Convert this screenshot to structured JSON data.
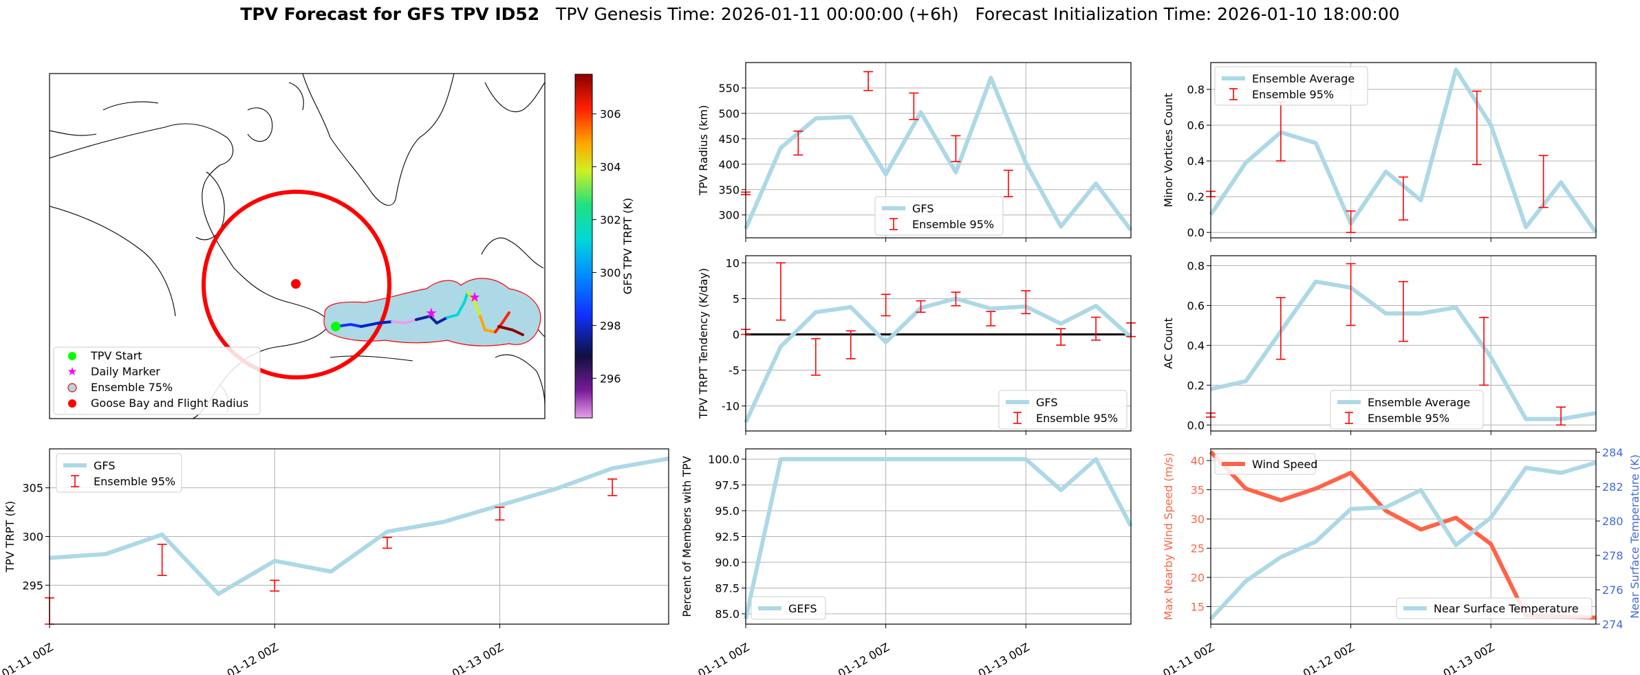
{
  "title": {
    "bold": "TPV Forecast for GFS TPV ID52",
    "genesis": "TPV Genesis Time: 2026-01-11 00:00:00 (+6h)",
    "init": "Forecast Initialization Time: 2026-01-10 18:00:00"
  },
  "colors": {
    "gfs_line": "#add8e6",
    "error_bar": "#ff0000",
    "wind_line": "#ff6347",
    "temp_axis": "#4169e1",
    "ring": "#ff0000",
    "start": "#00ff00",
    "daily": "#ff00ff"
  },
  "time_ticks": [
    "01-11 00Z",
    "01-12 00Z",
    "01-13 00Z"
  ],
  "map": {
    "colorbar_label": "GFS TPV TRPT (K)",
    "colorbar_ticks": [
      296,
      298,
      300,
      302,
      304,
      306
    ],
    "colorbar_range": [
      294.5,
      307.5
    ],
    "legend": [
      "TPV Start",
      "Daily Marker",
      "Ensemble 75%",
      "Goose Bay and Flight Radius"
    ]
  },
  "chart_data": [
    {
      "id": "trpt",
      "type": "line",
      "xlim": [
        0,
        11
      ],
      "ylim": [
        291,
        309
      ],
      "ylabel": "TPV TRPT (K)",
      "yticks": [
        295,
        300,
        305
      ],
      "x": [
        0,
        1,
        2,
        3,
        4,
        5,
        6,
        7,
        8,
        9,
        10,
        11
      ],
      "series": [
        {
          "name": "GFS",
          "values": [
            297.8,
            298.2,
            300.2,
            294.1,
            297.5,
            296.4,
            300.5,
            301.5,
            303.2,
            304.9,
            307.0,
            308.0
          ]
        }
      ],
      "errorbars": [
        {
          "x": 0,
          "low": 291,
          "high": 293.7
        },
        {
          "x": 2,
          "low": 296.0,
          "high": 299.2
        },
        {
          "x": 4,
          "low": 294.4,
          "high": 295.5
        },
        {
          "x": 6,
          "low": 298.8,
          "high": 299.9
        },
        {
          "x": 8,
          "low": 301.7,
          "high": 303.0
        },
        {
          "x": 10,
          "low": 304.2,
          "high": 305.9
        }
      ],
      "legend": [
        "GFS",
        "Ensemble 95%"
      ]
    },
    {
      "id": "radius",
      "type": "line",
      "xlim": [
        0,
        11
      ],
      "ylim": [
        255,
        600
      ],
      "ylabel": "TPV Radius (km)",
      "yticks": [
        300,
        350,
        400,
        450,
        500,
        550
      ],
      "x": [
        0,
        1,
        2,
        3,
        4,
        5,
        6,
        7,
        8,
        9,
        10,
        11
      ],
      "series": [
        {
          "name": "GFS",
          "values": [
            273,
            432,
            490,
            493,
            380,
            502,
            384,
            570,
            402,
            277,
            362,
            270
          ]
        }
      ],
      "errorbars": [
        {
          "x": 0,
          "low": 340,
          "high": 345
        },
        {
          "x": 1.5,
          "low": 418,
          "high": 465
        },
        {
          "x": 3.5,
          "low": 545,
          "high": 582
        },
        {
          "x": 4.8,
          "low": 488,
          "high": 540
        },
        {
          "x": 6,
          "low": 405,
          "high": 456
        },
        {
          "x": 7.5,
          "low": 336,
          "high": 388
        }
      ],
      "legend": [
        "GFS",
        "Ensemble 95%"
      ]
    },
    {
      "id": "tendency",
      "type": "line",
      "xlim": [
        0,
        11
      ],
      "ylim": [
        -13.5,
        11
      ],
      "ylabel": "TPV TRPT Tendency (K/day)",
      "yticks": [
        -10,
        -5,
        0,
        5,
        10
      ],
      "zero_line": true,
      "x": [
        0,
        1,
        2,
        3,
        4,
        5,
        6,
        7,
        8,
        9,
        10,
        11
      ],
      "series": [
        {
          "name": "GFS",
          "values": [
            -12.3,
            -1.7,
            3.1,
            3.8,
            -1.1,
            3.7,
            5.0,
            3.6,
            3.9,
            1.5,
            4.0,
            -0.4
          ]
        }
      ],
      "errorbars": [
        {
          "x": 0,
          "low": 0,
          "high": 0.7
        },
        {
          "x": 1,
          "low": 2.0,
          "high": 10.0
        },
        {
          "x": 2,
          "low": -5.7,
          "high": -0.6
        },
        {
          "x": 3,
          "low": -3.4,
          "high": 0.5
        },
        {
          "x": 4,
          "low": 2.6,
          "high": 5.6
        },
        {
          "x": 5,
          "low": 3.1,
          "high": 4.7
        },
        {
          "x": 6,
          "low": 4.0,
          "high": 5.9
        },
        {
          "x": 7,
          "low": 1.2,
          "high": 3.2
        },
        {
          "x": 8,
          "low": 2.9,
          "high": 6.1
        },
        {
          "x": 9,
          "low": -1.5,
          "high": 0.8
        },
        {
          "x": 10,
          "low": -0.8,
          "high": 2.4
        },
        {
          "x": 11,
          "low": -0.3,
          "high": 1.6
        }
      ],
      "legend": [
        "GFS",
        "Ensemble 95%"
      ]
    },
    {
      "id": "members",
      "type": "line",
      "xlim": [
        0,
        11
      ],
      "ylim": [
        84,
        101
      ],
      "ylabel": "Percent of Members with TPV",
      "yticks": [
        85.0,
        87.5,
        90.0,
        92.5,
        95.0,
        97.5,
        100.0
      ],
      "x": [
        0,
        1,
        2,
        3,
        4,
        5,
        6,
        7,
        8,
        9,
        10,
        11
      ],
      "series": [
        {
          "name": "GEFS",
          "values": [
            84.5,
            100,
            100,
            100,
            100,
            100,
            100,
            100,
            100,
            97,
            100,
            93.5
          ]
        }
      ],
      "legend": [
        "GEFS"
      ]
    },
    {
      "id": "minor",
      "type": "line",
      "xlim": [
        0,
        11
      ],
      "ylim": [
        -0.03,
        0.95
      ],
      "ylabel": "Minor Vortices Count",
      "yticks": [
        0.0,
        0.2,
        0.4,
        0.6,
        0.8
      ],
      "x": [
        0,
        1,
        2,
        3,
        4,
        5,
        6,
        7,
        8,
        9,
        10,
        11
      ],
      "series": [
        {
          "name": "Ensemble Average",
          "values": [
            0.1,
            0.39,
            0.56,
            0.5,
            0.05,
            0.34,
            0.18,
            0.91,
            0.6,
            0.03,
            0.28,
            0.0
          ]
        }
      ],
      "errorbars": [
        {
          "x": 0,
          "low": 0.2,
          "high": 0.23
        },
        {
          "x": 2,
          "low": 0.4,
          "high": 0.73
        },
        {
          "x": 4,
          "low": 0.0,
          "high": 0.12
        },
        {
          "x": 5.5,
          "low": 0.07,
          "high": 0.31
        },
        {
          "x": 7.6,
          "low": 0.38,
          "high": 0.79
        },
        {
          "x": 9.5,
          "low": 0.14,
          "high": 0.43
        }
      ],
      "legend": [
        "Ensemble Average",
        "Ensemble 95%"
      ]
    },
    {
      "id": "ac",
      "type": "line",
      "xlim": [
        0,
        11
      ],
      "ylim": [
        -0.03,
        0.85
      ],
      "ylabel": "AC Count",
      "yticks": [
        0.0,
        0.2,
        0.4,
        0.6,
        0.8
      ],
      "x": [
        0,
        1,
        2,
        3,
        4,
        5,
        6,
        7,
        8,
        9,
        10,
        11
      ],
      "series": [
        {
          "name": "Ensemble Average",
          "values": [
            0.18,
            0.22,
            0.47,
            0.72,
            0.69,
            0.56,
            0.56,
            0.59,
            0.34,
            0.03,
            0.03,
            0.06
          ]
        }
      ],
      "errorbars": [
        {
          "x": 0,
          "low": 0.04,
          "high": 0.06
        },
        {
          "x": 2,
          "low": 0.33,
          "high": 0.64
        },
        {
          "x": 4,
          "low": 0.5,
          "high": 0.81
        },
        {
          "x": 5.5,
          "low": 0.42,
          "high": 0.72
        },
        {
          "x": 7.8,
          "low": 0.2,
          "high": 0.54
        },
        {
          "x": 10,
          "low": 0.0,
          "high": 0.09
        }
      ],
      "legend": [
        "Ensemble Average",
        "Ensemble 95%"
      ]
    },
    {
      "id": "wind",
      "type": "line",
      "xlim": [
        0,
        11
      ],
      "ylim": [
        12,
        42
      ],
      "ylabel": "Max Nearby Wind Speed (m/s)",
      "yticks": [
        15,
        20,
        25,
        30,
        35,
        40
      ],
      "ylim_right": [
        274,
        284.2
      ],
      "ylabel_right": "Near Surface Temperature (K)",
      "yticks_right": [
        274,
        276,
        278,
        280,
        282,
        284
      ],
      "x": [
        0,
        1,
        2,
        3,
        4,
        5,
        6,
        7,
        8,
        9,
        10,
        11
      ],
      "series": [
        {
          "name": "Wind Speed",
          "axis": "left",
          "values": [
            41.5,
            35.2,
            33.2,
            35.2,
            37.9,
            31.4,
            28.2,
            30.2,
            25.7,
            13.5,
            13.3,
            13.1
          ]
        },
        {
          "name": "Near Surface Temperature",
          "axis": "right",
          "values": [
            274.3,
            276.5,
            277.9,
            278.8,
            280.7,
            280.8,
            281.8,
            278.6,
            280.2,
            283.1,
            282.8,
            283.4
          ]
        }
      ],
      "legend": [
        "Wind Speed",
        "Near Surface Temperature"
      ]
    }
  ]
}
